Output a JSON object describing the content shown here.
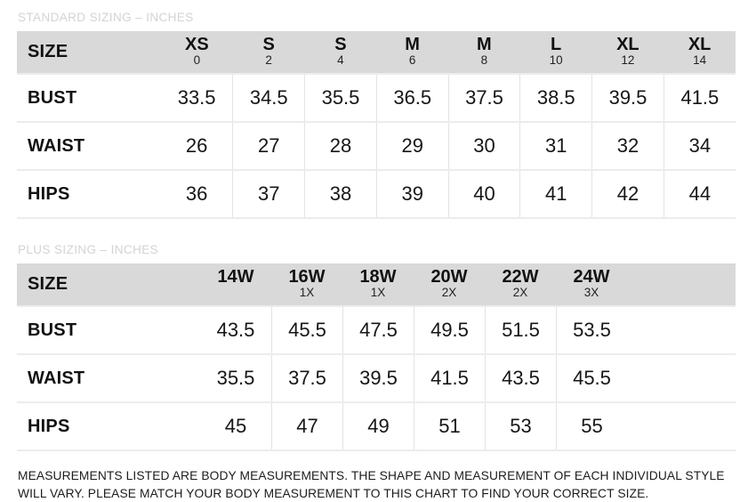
{
  "standard_table": {
    "title": "STANDARD SIZING – INCHES",
    "row_header": "SIZE",
    "columns": [
      {
        "label": "XS",
        "sub": "0"
      },
      {
        "label": "S",
        "sub": "2"
      },
      {
        "label": "S",
        "sub": "4"
      },
      {
        "label": "M",
        "sub": "6"
      },
      {
        "label": "M",
        "sub": "8"
      },
      {
        "label": "L",
        "sub": "10"
      },
      {
        "label": "XL",
        "sub": "12"
      },
      {
        "label": "XL",
        "sub": "14"
      }
    ],
    "rows": [
      {
        "label": "BUST",
        "values": [
          "33.5",
          "34.5",
          "35.5",
          "36.5",
          "37.5",
          "38.5",
          "39.5",
          "41.5"
        ]
      },
      {
        "label": "WAIST",
        "values": [
          "26",
          "27",
          "28",
          "29",
          "30",
          "31",
          "32",
          "34"
        ]
      },
      {
        "label": "HIPS",
        "values": [
          "36",
          "37",
          "38",
          "39",
          "40",
          "41",
          "42",
          "44"
        ]
      }
    ]
  },
  "plus_table": {
    "title": "PLUS SIZING – INCHES",
    "row_header": "SIZE",
    "columns": [
      {
        "label": "14W",
        "sub": ""
      },
      {
        "label": "16W",
        "sub": "1X"
      },
      {
        "label": "18W",
        "sub": "1X"
      },
      {
        "label": "20W",
        "sub": "2X"
      },
      {
        "label": "22W",
        "sub": "2X"
      },
      {
        "label": "24W",
        "sub": "3X"
      }
    ],
    "rows": [
      {
        "label": "BUST",
        "values": [
          "43.5",
          "45.5",
          "47.5",
          "49.5",
          "51.5",
          "53.5"
        ]
      },
      {
        "label": "WAIST",
        "values": [
          "35.5",
          "37.5",
          "39.5",
          "41.5",
          "43.5",
          "45.5"
        ]
      },
      {
        "label": "HIPS",
        "values": [
          "45",
          "47",
          "49",
          "51",
          "53",
          "55"
        ]
      }
    ]
  },
  "footer": {
    "text": "MEASUREMENTS LISTED ARE BODY MEASUREMENTS. THE SHAPE AND MEASUREMENT OF EACH INDIVIDUAL STYLE WILL VARY. PLEASE MATCH YOUR BODY MEASUREMENT TO THIS CHART TO FIND YOUR CORRECT SIZE."
  },
  "colors": {
    "header_bg": "#d9d9d9",
    "section_title": "#d3d3d3",
    "row_border": "#ececec",
    "column_divider": "#e3e3e3",
    "text": "#141414"
  }
}
